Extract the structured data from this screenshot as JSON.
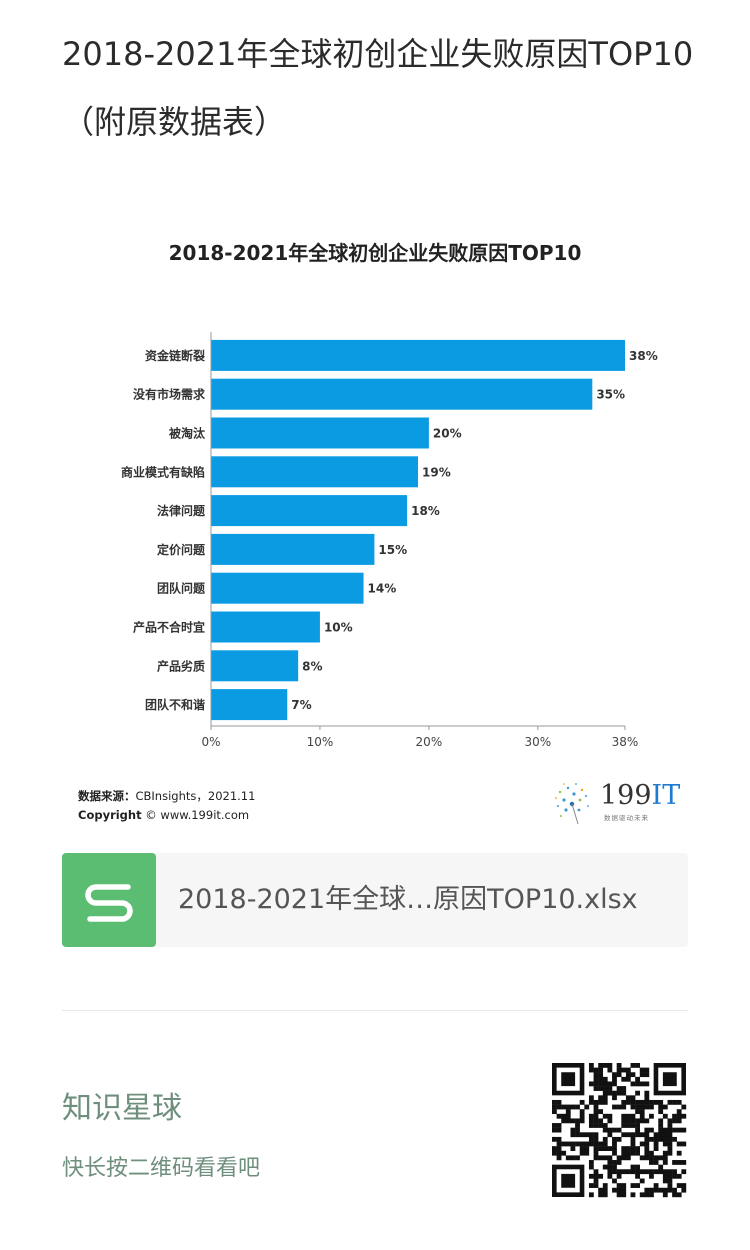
{
  "article": {
    "title": "2018-2021年全球初创企业失败原因TOP10（附原数据表）"
  },
  "chart_data": {
    "type": "bar",
    "orientation": "horizontal",
    "title": "2018-2021年全球初创企业失败原因TOP10",
    "categories": [
      "资金链断裂",
      "没有市场需求",
      "被淘汰",
      "商业模式有缺陷",
      "法律问题",
      "定价问题",
      "团队问题",
      "产品不合时宜",
      "产品劣质",
      "团队不和谐"
    ],
    "values": [
      38,
      35,
      20,
      19,
      18,
      15,
      14,
      10,
      8,
      7
    ],
    "value_labels": [
      "38%",
      "35%",
      "20%",
      "19%",
      "18%",
      "15%",
      "14%",
      "10%",
      "8%",
      "7%"
    ],
    "x_ticks": [
      0,
      10,
      20,
      30,
      38
    ],
    "x_tick_labels": [
      "0%",
      "10%",
      "20%",
      "30%",
      "38%"
    ],
    "xlim": [
      0,
      38
    ],
    "bar_color": "#0b9be3",
    "grid": false
  },
  "source": {
    "label": "数据来源：",
    "text": "CBInsights，2021.11",
    "copyright_label": "Copyright",
    "copyright_text": "© www.199it.com"
  },
  "brand": {
    "prefix": "199",
    "suffix": "IT",
    "tagline": "数据驱动未来"
  },
  "file": {
    "icon": "spreadsheet-s-icon",
    "name": "2018-2021年全球…原因TOP10.xlsx",
    "icon_color": "#5bbd72"
  },
  "planet": {
    "title": "知识星球",
    "subtitle": "快长按二维码看看吧"
  },
  "qr": {
    "icon": "qr-code-icon"
  }
}
